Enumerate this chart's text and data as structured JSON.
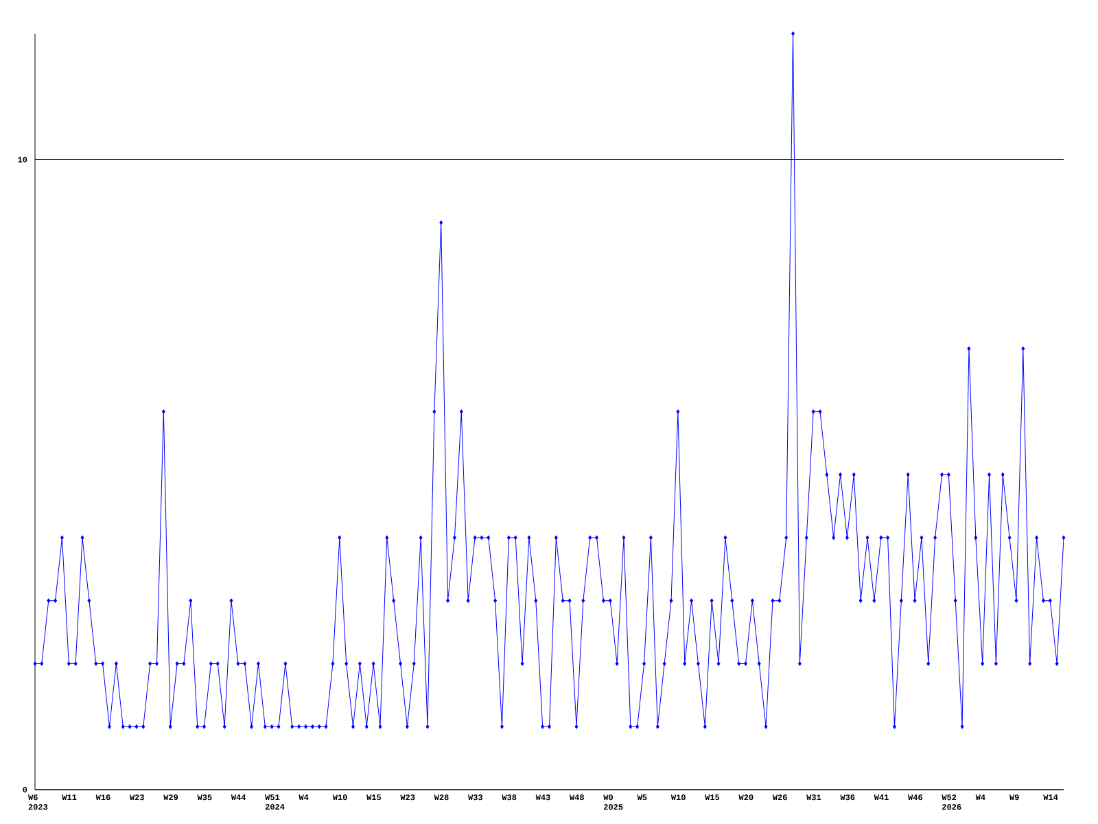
{
  "chart_data": {
    "type": "line",
    "categories": [
      "W6 2023",
      null,
      null,
      null,
      null,
      "W11",
      null,
      null,
      null,
      null,
      "W16",
      null,
      null,
      null,
      null,
      "W23",
      null,
      null,
      null,
      null,
      "W29",
      null,
      null,
      null,
      null,
      "W35",
      null,
      null,
      null,
      null,
      "W44",
      null,
      null,
      null,
      null,
      "W51 2024",
      null,
      null,
      null,
      null,
      "W4",
      null,
      null,
      null,
      null,
      "W10",
      null,
      null,
      null,
      null,
      "W15",
      null,
      null,
      null,
      null,
      "W23",
      null,
      null,
      null,
      null,
      "W28",
      null,
      null,
      null,
      null,
      "W33",
      null,
      null,
      null,
      null,
      "W38",
      null,
      null,
      null,
      null,
      "W43",
      null,
      null,
      null,
      null,
      "W48",
      null,
      null,
      null,
      null,
      "W0 2025",
      null,
      null,
      null,
      null,
      "W5",
      null,
      null,
      null,
      null,
      "W10",
      null,
      null,
      null,
      null,
      "W15",
      null,
      null,
      null,
      null,
      "W20",
      null,
      null,
      null,
      null,
      "W26",
      null,
      null,
      null,
      null,
      "W31",
      null,
      null,
      null,
      null,
      "W36",
      null,
      null,
      null,
      null,
      "W41",
      null,
      null,
      null,
      null,
      "W46",
      null,
      null,
      null,
      null,
      "W52 2026",
      null,
      null,
      null,
      null,
      "W4",
      null,
      null,
      null,
      null,
      "W9",
      null,
      null,
      null,
      null,
      "W14",
      null,
      null
    ],
    "values": [
      2,
      2,
      3,
      3,
      4,
      2,
      2,
      4,
      3,
      2,
      2,
      1,
      2,
      1,
      1,
      1,
      1,
      2,
      2,
      6,
      1,
      2,
      2,
      3,
      1,
      1,
      2,
      2,
      1,
      3,
      2,
      2,
      1,
      2,
      1,
      1,
      1,
      2,
      1,
      1,
      1,
      1,
      1,
      1,
      2,
      4,
      2,
      1,
      2,
      1,
      2,
      1,
      4,
      3,
      2,
      1,
      2,
      4,
      1,
      6,
      9,
      3,
      4,
      6,
      3,
      4,
      4,
      4,
      3,
      1,
      4,
      4,
      2,
      4,
      3,
      1,
      1,
      4,
      3,
      3,
      1,
      3,
      4,
      4,
      3,
      3,
      2,
      4,
      1,
      1,
      2,
      4,
      1,
      2,
      3,
      6,
      2,
      3,
      2,
      1,
      3,
      2,
      4,
      3,
      2,
      2,
      3,
      2,
      1,
      3,
      3,
      4,
      12,
      2,
      4,
      6,
      6,
      5,
      4,
      5,
      4,
      5,
      3,
      4,
      3,
      4,
      4,
      1,
      3,
      5,
      3,
      4,
      2,
      4,
      5,
      5,
      3,
      1,
      7,
      4,
      2,
      5,
      2,
      5,
      4,
      3,
      7,
      2,
      4,
      3,
      3,
      2,
      4
    ],
    "color": "#0000ff",
    "ylim": [
      0,
      12
    ],
    "yticks": [
      0,
      10
    ],
    "grid": "y",
    "marker": "diamond",
    "line_style": "solid"
  }
}
